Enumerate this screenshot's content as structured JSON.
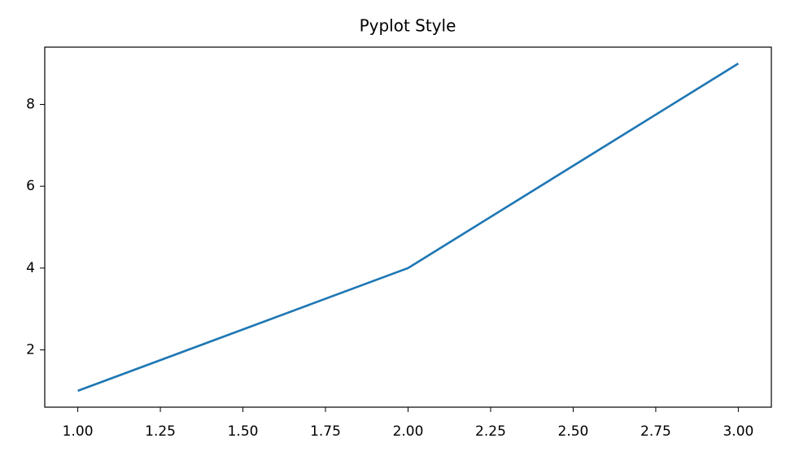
{
  "chart_data": {
    "type": "line",
    "title": "Pyplot Style",
    "x": [
      1,
      2,
      3
    ],
    "series": [
      {
        "name": null,
        "color": "#1f77b4",
        "values": [
          1,
          4,
          9
        ]
      }
    ],
    "xlim": [
      0.9,
      3.1
    ],
    "xticks": [
      {
        "value": 1,
        "label": "1.00"
      },
      {
        "value": 1.25,
        "label": "1.25"
      },
      {
        "value": 1.5,
        "label": "1.50"
      },
      {
        "value": 1.75,
        "label": "1.75"
      },
      {
        "value": 2,
        "label": "2.00"
      },
      {
        "value": 2.25,
        "label": "2.25"
      },
      {
        "value": 2.5,
        "label": "2.50"
      },
      {
        "value": 2.75,
        "label": "2.75"
      },
      {
        "value": 3,
        "label": "3.00"
      }
    ],
    "ylim": [
      0.6,
      9.4
    ],
    "yticks": [
      2,
      4,
      6,
      8
    ],
    "grid": false
  }
}
